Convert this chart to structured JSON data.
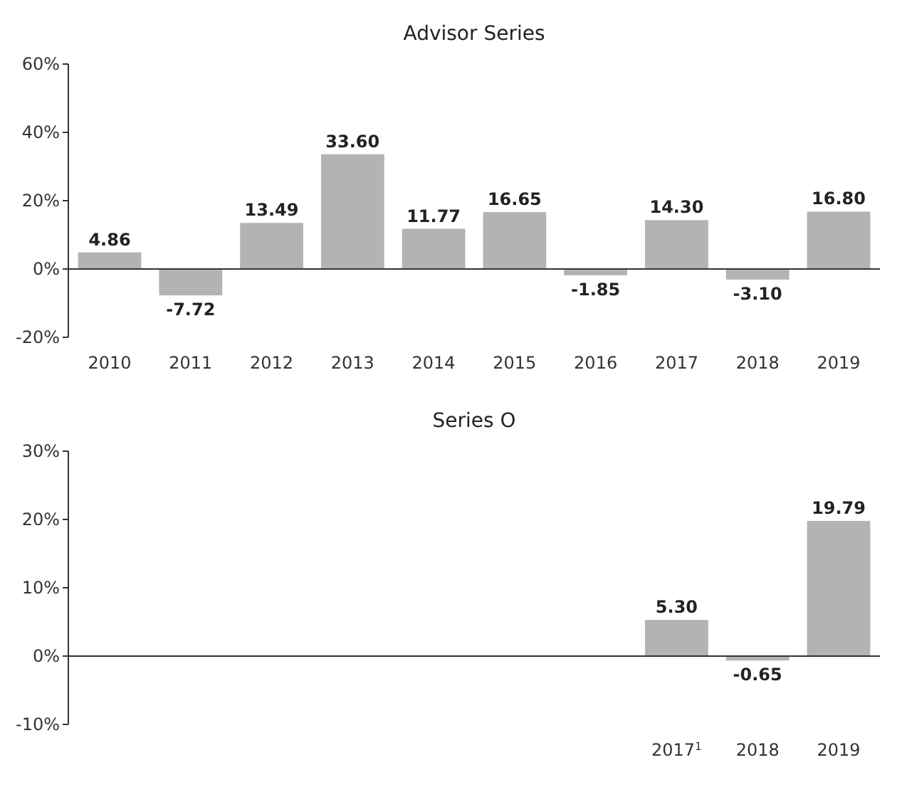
{
  "chart_data": [
    {
      "type": "bar",
      "title": "Advisor Series",
      "categories": [
        "2010",
        "2011",
        "2012",
        "2013",
        "2014",
        "2015",
        "2016",
        "2017",
        "2018",
        "2019"
      ],
      "values": [
        4.86,
        -7.72,
        13.49,
        33.6,
        11.77,
        16.65,
        -1.85,
        14.3,
        -3.1,
        16.8
      ],
      "value_labels": [
        "4.86",
        "-7.72",
        "13.49",
        "33.60",
        "11.77",
        "16.65",
        "-1.85",
        "14.30",
        "-3.10",
        "16.80"
      ],
      "color": "#b3b3b3",
      "ylim": [
        -20,
        60
      ],
      "yticks": [
        {
          "value": -20,
          "label": "-20%"
        },
        {
          "value": 0,
          "label": "0%"
        },
        {
          "value": 20,
          "label": "20%"
        },
        {
          "value": 40,
          "label": "40%"
        },
        {
          "value": 60,
          "label": "60%"
        }
      ]
    },
    {
      "type": "bar",
      "title": "Series O",
      "categories": [
        null,
        null,
        null,
        null,
        null,
        null,
        null,
        "2017$^{1}$",
        "2018",
        "2019"
      ],
      "values": [
        null,
        null,
        null,
        null,
        null,
        null,
        null,
        5.3,
        -0.65,
        19.79
      ],
      "value_labels": [
        null,
        null,
        null,
        null,
        null,
        null,
        null,
        "5.30",
        "-0.65",
        "19.79"
      ],
      "color": "#b3b3b3",
      "ylim": [
        -10,
        30
      ],
      "yticks": [
        {
          "value": -10,
          "label": "-10%"
        },
        {
          "value": 0,
          "label": "0%"
        },
        {
          "value": 10,
          "label": "10%"
        },
        {
          "value": 20,
          "label": "20%"
        },
        {
          "value": 30,
          "label": "30%"
        }
      ]
    }
  ]
}
